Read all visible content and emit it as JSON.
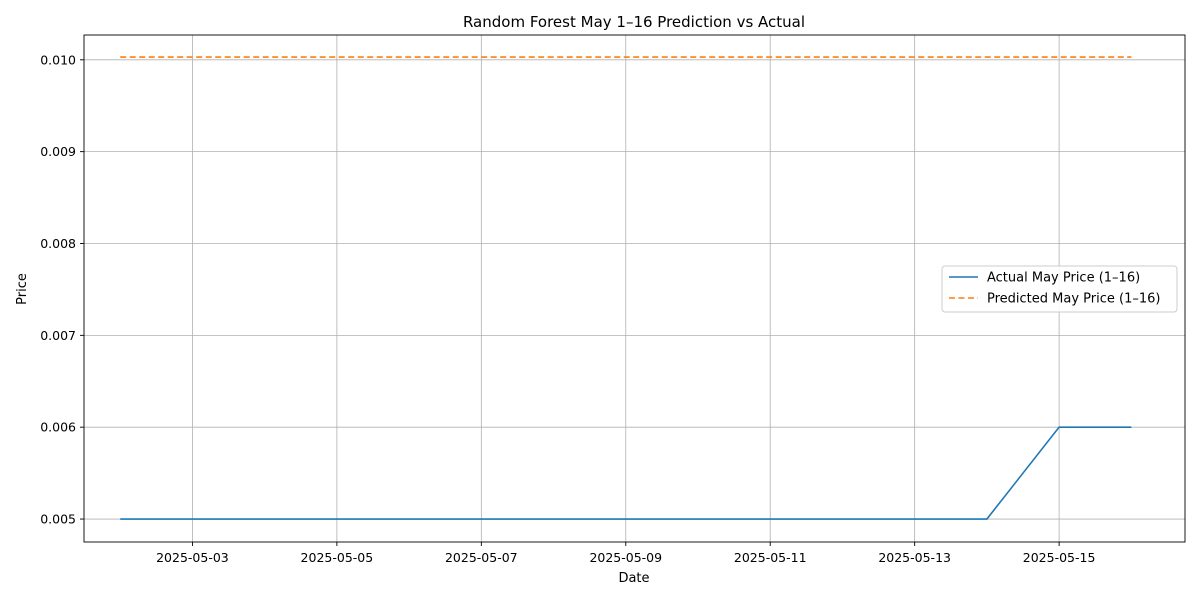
{
  "chart_data": {
    "type": "line",
    "title": "Random Forest May 1–16 Prediction vs Actual",
    "xlabel": "Date",
    "ylabel": "Price",
    "x": [
      "2025-05-02",
      "2025-05-03",
      "2025-05-04",
      "2025-05-05",
      "2025-05-06",
      "2025-05-07",
      "2025-05-08",
      "2025-05-09",
      "2025-05-10",
      "2025-05-11",
      "2025-05-12",
      "2025-05-13",
      "2025-05-14",
      "2025-05-15",
      "2025-05-16"
    ],
    "xlim": [
      "2025-05-01T11:58:00",
      "2025-05-16T17:50:00"
    ],
    "x_ticks": [
      "2025-05-03",
      "2025-05-05",
      "2025-05-07",
      "2025-05-09",
      "2025-05-11",
      "2025-05-13",
      "2025-05-15"
    ],
    "ylim": [
      0.00475,
      0.01027
    ],
    "y_ticks": [
      "0.005",
      "0.006",
      "0.007",
      "0.008",
      "0.009",
      "0.010"
    ],
    "grid": true,
    "legend_position": "center-right",
    "series": [
      {
        "name": "Actual May Price (1–16)",
        "color": "#1f77b4",
        "style": "solid",
        "values": [
          0.005,
          0.005,
          0.005,
          0.005,
          0.005,
          0.005,
          0.005,
          0.005,
          0.005,
          0.005,
          0.005,
          0.005,
          0.005,
          0.006,
          0.006
        ]
      },
      {
        "name": "Predicted May Price (1–16)",
        "color": "#ff7f0e",
        "style": "dashed",
        "values": [
          0.01003,
          0.01003,
          0.01003,
          0.01003,
          0.01003,
          0.01003,
          0.01003,
          0.01003,
          0.01003,
          0.01003,
          0.01003,
          0.01003,
          0.01003,
          0.01003,
          0.01003
        ]
      }
    ]
  }
}
